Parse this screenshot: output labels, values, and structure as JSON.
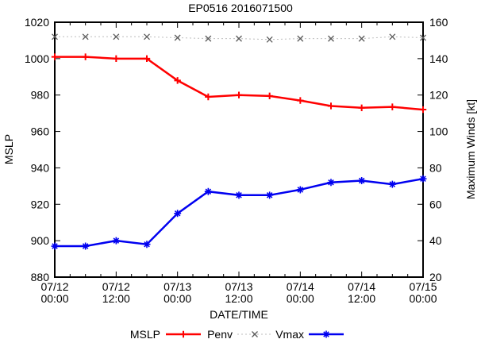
{
  "chart_data": {
    "type": "line",
    "title": "EP0516 2016071500",
    "xlabel": "DATE/TIME",
    "ylabel_left": "MSLP",
    "ylabel_right": "Maximum Winds [kt]",
    "background_color": "#ffffff",
    "axis_color": "#000000",
    "x_axis": {
      "label": "DATE/TIME",
      "total_hours": 72,
      "point_interval_hours": 6,
      "minor_tick_hours": 3,
      "major_tick_hours": 12,
      "tick_labels": [
        {
          "hour": 0,
          "date": "07/12",
          "time": "00:00"
        },
        {
          "hour": 12,
          "date": "07/12",
          "time": "12:00"
        },
        {
          "hour": 24,
          "date": "07/13",
          "time": "00:00"
        },
        {
          "hour": 36,
          "date": "07/13",
          "time": "12:00"
        },
        {
          "hour": 48,
          "date": "07/14",
          "time": "00:00"
        },
        {
          "hour": 60,
          "date": "07/14",
          "time": "12:00"
        },
        {
          "hour": 72,
          "date": "07/15",
          "time": "00:00"
        }
      ]
    },
    "point_times": [
      "07/12 00:00",
      "07/12 06:00",
      "07/12 12:00",
      "07/12 18:00",
      "07/13 00:00",
      "07/13 06:00",
      "07/13 12:00",
      "07/13 18:00",
      "07/14 00:00",
      "07/14 06:00",
      "07/14 12:00",
      "07/14 18:00",
      "07/15 00:00"
    ],
    "left_axis": {
      "label": "MSLP",
      "min": 880,
      "max": 1020,
      "tick_step": 20,
      "ticks": [
        880,
        900,
        920,
        940,
        960,
        980,
        1000,
        1020
      ]
    },
    "right_axis": {
      "label": "Maximum Winds [kt]",
      "min": 20,
      "max": 160,
      "tick_step": 20,
      "ticks": [
        20,
        40,
        60,
        80,
        100,
        120,
        140,
        160
      ]
    },
    "series": [
      {
        "name": "MSLP",
        "axis": "left",
        "color": "#ff0000",
        "marker_color": "#ff0000",
        "line_style": "solid",
        "line_width": 2.5,
        "marker": "plus",
        "values": [
          1001,
          1001,
          1000,
          1000,
          988,
          979,
          980,
          979.5,
          977,
          974,
          973,
          973.5,
          972
        ]
      },
      {
        "name": "Penv",
        "axis": "left",
        "color": "#bdbdbd",
        "marker_color": "#5a5a5a",
        "line_style": "dotted",
        "line_width": 1,
        "marker": "cross",
        "values": [
          1012,
          1012,
          1012,
          1012,
          1011.5,
          1011,
          1011,
          1010.5,
          1011,
          1011,
          1011,
          1012,
          1011.5
        ]
      },
      {
        "name": "Vmax",
        "axis": "right",
        "color": "#0000f0",
        "marker_color": "#0000f0",
        "line_style": "solid",
        "line_width": 2.5,
        "marker": "star",
        "values": [
          37,
          37,
          40,
          38,
          55,
          67,
          65,
          65,
          68,
          72,
          73,
          71,
          74
        ]
      }
    ],
    "legend": {
      "position": "bottom-center",
      "entries": [
        "MSLP",
        "Penv",
        "Vmax"
      ]
    }
  }
}
